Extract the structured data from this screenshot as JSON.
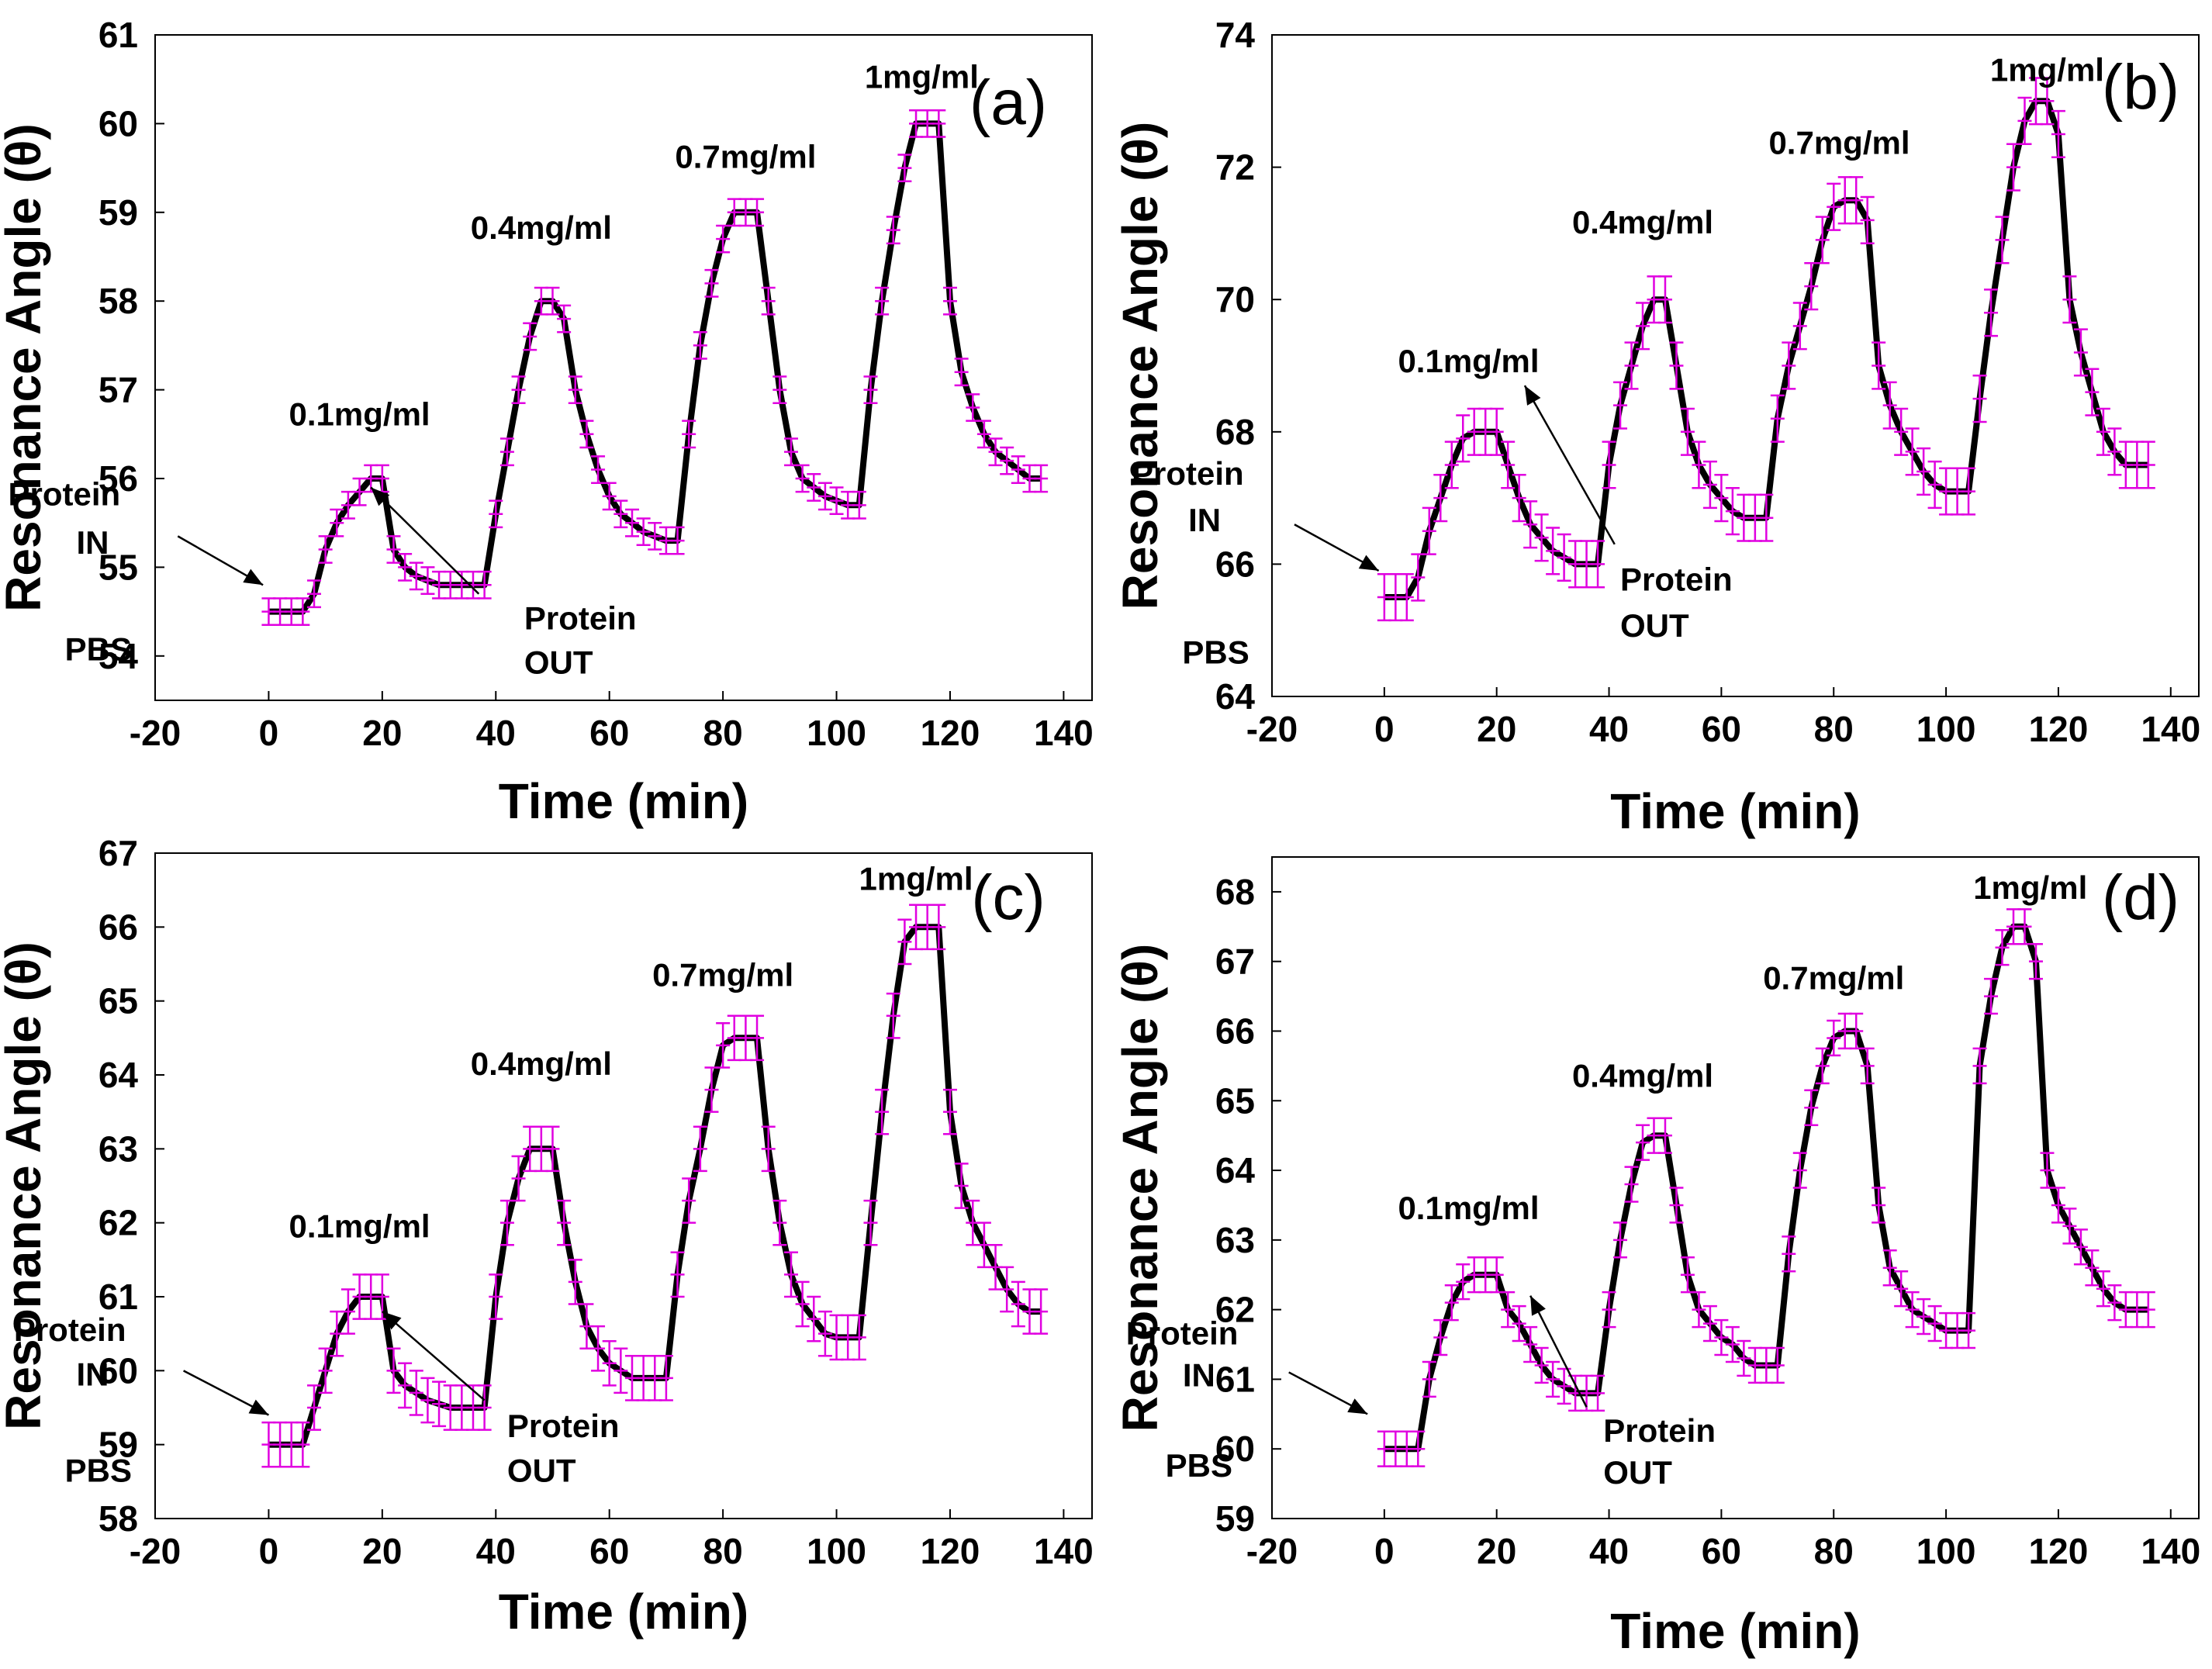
{
  "figure": {
    "axis_labels": {
      "x": "Time (min)",
      "y": "Resonance Angle (θ)"
    },
    "common_labels": {
      "pbs": "PBS",
      "protein_in_1": "Protein",
      "protein_in_2": "IN",
      "protein_out_1": "Protein",
      "protein_out_2": "OUT"
    }
  },
  "chart_data": [
    {
      "type": "line",
      "panel": "(a)",
      "title": "",
      "xlabel": "Time (min)",
      "ylabel": "Resonance Angle (θ)",
      "xlim": [
        -20,
        145
      ],
      "ylim": [
        53.5,
        61
      ],
      "xticks": [
        -20,
        0,
        20,
        40,
        60,
        80,
        100,
        120,
        140
      ],
      "yticks": [
        54,
        55,
        56,
        57,
        58,
        59,
        60,
        61
      ],
      "series": [
        {
          "name": "Resonance Angle",
          "x": [
            0,
            2,
            4,
            6,
            8,
            10,
            12,
            14,
            16,
            18,
            20,
            22,
            24,
            26,
            28,
            30,
            32,
            34,
            36,
            38,
            40,
            42,
            44,
            46,
            48,
            50,
            52,
            54,
            56,
            58,
            60,
            62,
            64,
            66,
            68,
            70,
            72,
            74,
            76,
            78,
            80,
            82,
            84,
            86,
            88,
            90,
            92,
            94,
            96,
            98,
            100,
            102,
            104,
            106,
            108,
            110,
            112,
            114,
            116,
            118,
            120,
            122,
            124,
            126,
            128,
            130,
            132,
            134,
            136
          ],
          "y": [
            54.5,
            54.5,
            54.5,
            54.5,
            54.7,
            55.2,
            55.5,
            55.7,
            55.85,
            56.0,
            56.0,
            55.2,
            55.0,
            54.9,
            54.85,
            54.8,
            54.8,
            54.8,
            54.8,
            54.8,
            55.6,
            56.3,
            57.0,
            57.6,
            58.0,
            58.0,
            57.8,
            57.0,
            56.5,
            56.1,
            55.8,
            55.6,
            55.5,
            55.4,
            55.35,
            55.3,
            55.3,
            56.5,
            57.5,
            58.2,
            58.7,
            59.0,
            59.0,
            59.0,
            58.0,
            57.0,
            56.3,
            56.0,
            55.9,
            55.8,
            55.75,
            55.7,
            55.7,
            57.0,
            58.0,
            58.8,
            59.5,
            60.0,
            60.0,
            60.0,
            58.0,
            57.2,
            56.8,
            56.5,
            56.3,
            56.2,
            56.1,
            56.0,
            56.0
          ],
          "error": 0.15
        }
      ],
      "annotations": [
        {
          "text": "0.1mg/ml",
          "x": 16,
          "y": 56.6
        },
        {
          "text": "0.4mg/ml",
          "x": 48,
          "y": 58.7
        },
        {
          "text": "0.7mg/ml",
          "x": 84,
          "y": 59.5
        },
        {
          "text": "1mg/ml",
          "x": 115,
          "y": 60.4
        }
      ]
    },
    {
      "type": "line",
      "panel": "(b)",
      "title": "",
      "xlabel": "Time (min)",
      "ylabel": "Resonance Angle (θ)",
      "xlim": [
        -20,
        145
      ],
      "ylim": [
        64,
        74
      ],
      "xticks": [
        -20,
        0,
        20,
        40,
        60,
        80,
        100,
        120,
        140
      ],
      "yticks": [
        64,
        66,
        68,
        70,
        72,
        74
      ],
      "series": [
        {
          "name": "Resonance Angle",
          "x": [
            0,
            2,
            4,
            6,
            8,
            10,
            12,
            14,
            16,
            18,
            20,
            22,
            24,
            26,
            28,
            30,
            32,
            34,
            36,
            38,
            40,
            42,
            44,
            46,
            48,
            50,
            52,
            54,
            56,
            58,
            60,
            62,
            64,
            66,
            68,
            70,
            72,
            74,
            76,
            78,
            80,
            82,
            84,
            86,
            88,
            90,
            92,
            94,
            96,
            98,
            100,
            102,
            104,
            106,
            108,
            110,
            112,
            114,
            116,
            118,
            120,
            122,
            124,
            126,
            128,
            130,
            132,
            134,
            136
          ],
          "y": [
            65.5,
            65.5,
            65.5,
            65.8,
            66.5,
            67.0,
            67.5,
            67.9,
            68.0,
            68.0,
            68.0,
            67.5,
            67.0,
            66.6,
            66.4,
            66.2,
            66.1,
            66.0,
            66.0,
            66.0,
            67.5,
            68.4,
            69.0,
            69.6,
            70.0,
            70.0,
            69.0,
            68.0,
            67.5,
            67.2,
            67.0,
            66.8,
            66.7,
            66.7,
            66.7,
            68.2,
            69.0,
            69.6,
            70.2,
            70.9,
            71.4,
            71.5,
            71.5,
            71.2,
            69.0,
            68.4,
            68.0,
            67.7,
            67.4,
            67.2,
            67.1,
            67.1,
            67.1,
            68.5,
            69.8,
            70.9,
            72.0,
            72.7,
            73.0,
            73.0,
            72.5,
            70.0,
            69.2,
            68.6,
            68.0,
            67.7,
            67.5,
            67.5,
            67.5
          ],
          "error": 0.35
        }
      ],
      "annotations": [
        {
          "text": "0.1mg/ml",
          "x": 15,
          "y": 68.9
        },
        {
          "text": "0.4mg/ml",
          "x": 46,
          "y": 71.0
        },
        {
          "text": "0.7mg/ml",
          "x": 81,
          "y": 72.2
        },
        {
          "text": "1mg/ml",
          "x": 118,
          "y": 73.3
        }
      ]
    },
    {
      "type": "line",
      "panel": "(c)",
      "title": "",
      "xlabel": "Time (min)",
      "ylabel": "Resonance Angle (θ)",
      "xlim": [
        -20,
        145
      ],
      "ylim": [
        58,
        67
      ],
      "xticks": [
        -20,
        0,
        20,
        40,
        60,
        80,
        100,
        120,
        140
      ],
      "yticks": [
        58,
        59,
        60,
        61,
        62,
        63,
        64,
        65,
        66,
        67
      ],
      "series": [
        {
          "name": "Resonance Angle",
          "x": [
            0,
            2,
            4,
            6,
            8,
            10,
            12,
            14,
            16,
            18,
            20,
            22,
            24,
            26,
            28,
            30,
            32,
            34,
            36,
            38,
            40,
            42,
            44,
            46,
            48,
            50,
            52,
            54,
            56,
            58,
            60,
            62,
            64,
            66,
            68,
            70,
            72,
            74,
            76,
            78,
            80,
            82,
            84,
            86,
            88,
            90,
            92,
            94,
            96,
            98,
            100,
            102,
            104,
            106,
            108,
            110,
            112,
            114,
            116,
            118,
            120,
            122,
            124,
            126,
            128,
            130,
            132,
            134,
            136
          ],
          "y": [
            59.0,
            59.0,
            59.0,
            59.0,
            59.5,
            60.0,
            60.5,
            60.8,
            61.0,
            61.0,
            61.0,
            60.0,
            59.8,
            59.7,
            59.6,
            59.55,
            59.5,
            59.5,
            59.5,
            59.5,
            61.0,
            62.0,
            62.6,
            63.0,
            63.0,
            63.0,
            62.0,
            61.2,
            60.6,
            60.3,
            60.1,
            60.0,
            59.9,
            59.9,
            59.9,
            59.9,
            61.3,
            62.3,
            63.0,
            63.8,
            64.4,
            64.5,
            64.5,
            64.5,
            63.0,
            62.0,
            61.3,
            60.9,
            60.7,
            60.5,
            60.45,
            60.45,
            60.45,
            62.0,
            63.5,
            64.8,
            65.8,
            66.0,
            66.0,
            66.0,
            63.5,
            62.5,
            62.0,
            61.7,
            61.4,
            61.1,
            60.9,
            60.8,
            60.8
          ],
          "error": 0.3
        }
      ],
      "annotations": [
        {
          "text": "0.1mg/ml",
          "x": 16,
          "y": 61.8
        },
        {
          "text": "0.4mg/ml",
          "x": 48,
          "y": 64.0
        },
        {
          "text": "0.7mg/ml",
          "x": 80,
          "y": 65.2
        },
        {
          "text": "1mg/ml",
          "x": 114,
          "y": 66.5
        }
      ]
    },
    {
      "type": "line",
      "panel": "(d)",
      "title": "",
      "xlabel": "Time (min)",
      "ylabel": "Resonance Angle (θ)",
      "xlim": [
        -20,
        145
      ],
      "ylim": [
        59,
        68.5
      ],
      "xticks": [
        -20,
        0,
        20,
        40,
        60,
        80,
        100,
        120,
        140
      ],
      "yticks": [
        59,
        60,
        61,
        62,
        63,
        64,
        65,
        66,
        67,
        68
      ],
      "series": [
        {
          "name": "Resonance Angle",
          "x": [
            0,
            2,
            4,
            6,
            8,
            10,
            12,
            14,
            16,
            18,
            20,
            22,
            24,
            26,
            28,
            30,
            32,
            34,
            36,
            38,
            40,
            42,
            44,
            46,
            48,
            50,
            52,
            54,
            56,
            58,
            60,
            62,
            64,
            66,
            68,
            70,
            72,
            74,
            76,
            78,
            80,
            82,
            84,
            86,
            88,
            90,
            92,
            94,
            96,
            98,
            100,
            102,
            104,
            106,
            108,
            110,
            112,
            114,
            116,
            118,
            120,
            122,
            124,
            126,
            128,
            130,
            132,
            134,
            136
          ],
          "y": [
            60.0,
            60.0,
            60.0,
            60.0,
            61.0,
            61.6,
            62.1,
            62.4,
            62.5,
            62.5,
            62.5,
            62.0,
            61.8,
            61.5,
            61.2,
            61.0,
            60.9,
            60.8,
            60.8,
            60.8,
            62.0,
            63.0,
            63.8,
            64.4,
            64.5,
            64.5,
            63.5,
            62.5,
            62.0,
            61.8,
            61.6,
            61.5,
            61.3,
            61.2,
            61.2,
            61.2,
            62.8,
            64.0,
            64.9,
            65.5,
            65.9,
            66.0,
            66.0,
            65.5,
            63.5,
            62.6,
            62.3,
            62.0,
            61.9,
            61.8,
            61.7,
            61.7,
            61.7,
            65.5,
            66.5,
            67.2,
            67.5,
            67.5,
            67.0,
            64.0,
            63.5,
            63.2,
            62.9,
            62.6,
            62.3,
            62.1,
            62.0,
            62.0,
            62.0
          ],
          "error": 0.25
        }
      ],
      "annotations": [
        {
          "text": "0.1mg/ml",
          "x": 15,
          "y": 63.3
        },
        {
          "text": "0.4mg/ml",
          "x": 46,
          "y": 65.2
        },
        {
          "text": "0.7mg/ml",
          "x": 80,
          "y": 66.6
        },
        {
          "text": "1mg/ml",
          "x": 115,
          "y": 67.9
        }
      ]
    }
  ]
}
